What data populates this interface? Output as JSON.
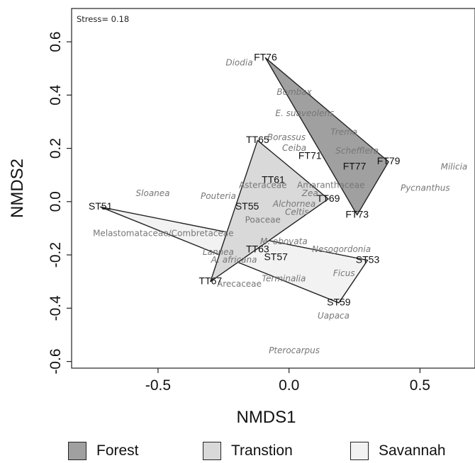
{
  "chart_data": {
    "type": "scatter",
    "xlabel": "NMDS1",
    "ylabel": "NMDS2",
    "xlim": [
      -0.83,
      0.71
    ],
    "ylim": [
      -0.625,
      0.725
    ],
    "xticks": [
      -0.5,
      0.0,
      0.5
    ],
    "yticks": [
      -0.6,
      -0.4,
      -0.2,
      0.0,
      0.2,
      0.4,
      0.6
    ],
    "annotation": "Stress= 0.18",
    "groups": [
      {
        "name": "Forest",
        "color": "#a0a0a0",
        "hull": [
          "FT76",
          "FT79",
          "FT73"
        ]
      },
      {
        "name": "Transtion",
        "color": "#d9d9d9",
        "hull": [
          "TT65",
          "TT69",
          "TT67"
        ]
      },
      {
        "name": "Savannah",
        "color": "#f2f2f2",
        "hull": [
          "ST51",
          "ST53",
          "ST59"
        ]
      }
    ],
    "sites": [
      {
        "label": "FT76",
        "x": -0.09,
        "y": 0.54
      },
      {
        "label": "FT79",
        "x": 0.38,
        "y": 0.15
      },
      {
        "label": "FT73",
        "x": 0.26,
        "y": -0.05
      },
      {
        "label": "FT71",
        "x": 0.08,
        "y": 0.17
      },
      {
        "label": "FT77",
        "x": 0.25,
        "y": 0.13
      },
      {
        "label": "TT65",
        "x": -0.12,
        "y": 0.23
      },
      {
        "label": "TT69",
        "x": 0.15,
        "y": 0.01
      },
      {
        "label": "TT67",
        "x": -0.3,
        "y": -0.3
      },
      {
        "label": "TT61",
        "x": -0.06,
        "y": 0.08
      },
      {
        "label": "TT63",
        "x": -0.12,
        "y": -0.18
      },
      {
        "label": "ST51",
        "x": -0.72,
        "y": -0.02
      },
      {
        "label": "ST53",
        "x": 0.3,
        "y": -0.22
      },
      {
        "label": "ST59",
        "x": 0.19,
        "y": -0.38
      },
      {
        "label": "ST55",
        "x": -0.16,
        "y": -0.02
      },
      {
        "label": "ST57",
        "x": -0.05,
        "y": -0.21
      }
    ],
    "taxa": [
      {
        "label": "Diodia",
        "x": -0.19,
        "y": 0.52,
        "italic": true
      },
      {
        "label": "Bombax",
        "x": 0.02,
        "y": 0.41,
        "italic": true
      },
      {
        "label": "E. suaveolens",
        "x": 0.06,
        "y": 0.33,
        "italic": true
      },
      {
        "label": "Trema",
        "x": 0.21,
        "y": 0.26,
        "italic": true
      },
      {
        "label": "Borassus",
        "x": -0.01,
        "y": 0.24,
        "italic": true
      },
      {
        "label": "Ceiba",
        "x": 0.02,
        "y": 0.2,
        "italic": true
      },
      {
        "label": "Schefflera",
        "x": 0.26,
        "y": 0.19,
        "italic": true
      },
      {
        "label": "Milicia",
        "x": 0.63,
        "y": 0.13,
        "italic": true
      },
      {
        "label": "Pycnanthus",
        "x": 0.52,
        "y": 0.05,
        "italic": true
      },
      {
        "label": "Sloanea",
        "x": -0.52,
        "y": 0.03,
        "italic": true
      },
      {
        "label": "Pouteria",
        "x": -0.27,
        "y": 0.02,
        "italic": true
      },
      {
        "label": "Asteraceae",
        "x": -0.1,
        "y": 0.06,
        "italic": false
      },
      {
        "label": "Amaranthaceae",
        "x": 0.16,
        "y": 0.06,
        "italic": false
      },
      {
        "label": "Zea",
        "x": 0.08,
        "y": 0.03,
        "italic": true
      },
      {
        "label": "Alchornea",
        "x": 0.02,
        "y": -0.01,
        "italic": true
      },
      {
        "label": "Celtis",
        "x": 0.03,
        "y": -0.04,
        "italic": true
      },
      {
        "label": "Poaceae",
        "x": -0.1,
        "y": -0.07,
        "italic": false
      },
      {
        "label": "Melastomataceae/Combretaceae",
        "x": -0.48,
        "y": -0.12,
        "italic": false
      },
      {
        "label": "M. obovata",
        "x": -0.02,
        "y": -0.15,
        "italic": true
      },
      {
        "label": "Nesogordonia",
        "x": 0.2,
        "y": -0.18,
        "italic": true
      },
      {
        "label": "Lannea",
        "x": -0.27,
        "y": -0.19,
        "italic": true
      },
      {
        "label": "A. africana",
        "x": -0.21,
        "y": -0.22,
        "italic": true
      },
      {
        "label": "Ficus",
        "x": 0.21,
        "y": -0.27,
        "italic": true
      },
      {
        "label": "Arecaceae",
        "x": -0.19,
        "y": -0.31,
        "italic": false
      },
      {
        "label": "Terminalia",
        "x": -0.02,
        "y": -0.29,
        "italic": true
      },
      {
        "label": "Uapaca",
        "x": 0.17,
        "y": -0.43,
        "italic": true
      },
      {
        "label": "Pterocarpus",
        "x": 0.02,
        "y": -0.56,
        "italic": true
      }
    ]
  },
  "legend": {
    "forest_label": "Forest",
    "transition_label": "Transtion",
    "savannah_label": "Savannah"
  }
}
